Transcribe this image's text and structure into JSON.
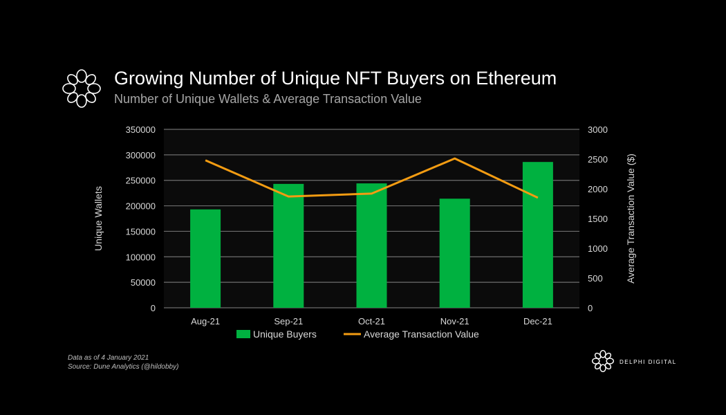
{
  "header": {
    "title": "Growing Number of Unique NFT Buyers on Ethereum",
    "subtitle": "Number of Unique Wallets & Average Transaction Value",
    "logo_icon": "delphi-flower-icon"
  },
  "chart_data": {
    "type": "bar+line",
    "categories": [
      "Aug-21",
      "Sep-21",
      "Oct-21",
      "Nov-21",
      "Dec-21"
    ],
    "series": [
      {
        "name": "Unique Buyers",
        "type": "bar",
        "axis": "left",
        "color": "#00b140",
        "values": [
          193000,
          243000,
          244000,
          214000,
          286000
        ]
      },
      {
        "name": "Average Transaction Value",
        "type": "line",
        "axis": "right",
        "color": "#f39c12",
        "values": [
          2480,
          1870,
          1920,
          2510,
          1850
        ]
      }
    ],
    "ylabel": "Unique Wallets",
    "ylim": [
      0,
      350000
    ],
    "yticks": [
      "0",
      "50000",
      "100000",
      "150000",
      "200000",
      "250000",
      "300000",
      "350000"
    ],
    "y2label": "Average Transaction Value ($)",
    "y2lim": [
      0,
      3000
    ],
    "y2ticks": [
      "0",
      "500",
      "1000",
      "1500",
      "2000",
      "2500",
      "3000"
    ],
    "grid": true,
    "legend": "bottom"
  },
  "footer": {
    "note": "Data as of 4 January 2021",
    "source": "Source: Dune Analytics (@hildobby)",
    "brand": "DELPHI DIGITAL"
  }
}
